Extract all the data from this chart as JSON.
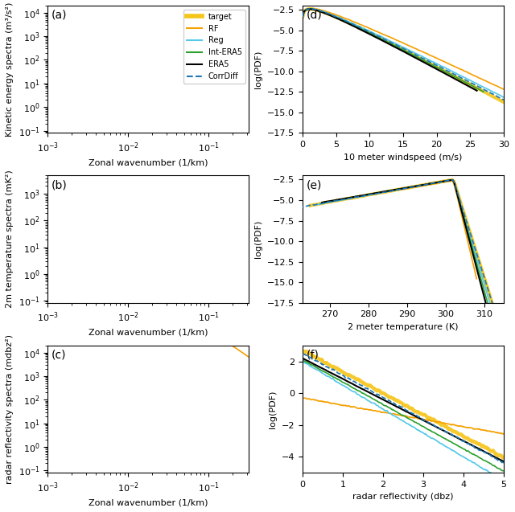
{
  "colors": {
    "target": "#f5c518",
    "RF": "#f5a000",
    "Reg": "#56c8e8",
    "Int-ERA5": "#2ca02c",
    "ERA5": "#000000",
    "CorrDiff": "#1f77b4"
  },
  "legend_labels": [
    "target",
    "RF",
    "Reg",
    "Int-ERA5",
    "ERA5",
    "CorrDiff"
  ],
  "panel_labels": [
    "(a)",
    "(b)",
    "(c)",
    "(d)",
    "(e)",
    "(f)"
  ],
  "ylabels_left": [
    "Kinetic energy spectra (m³/s²)",
    "2m temperature spectra (mK²)",
    "radar reflectivity spectra (mdbz²)"
  ],
  "ylabels_right": [
    "log(PDF)",
    "log(PDF)",
    "log(PDF)"
  ],
  "xlabels_left": [
    "Zonal wavenumber (1/km)",
    "Zonal wavenumber (1/km)",
    "Zonal wavenumber (1/km)"
  ],
  "xlabels_right": [
    "10 meter windspeed (m/s)",
    "2 meter temperature (K)",
    "radar reflectivity (dbz)"
  ],
  "figsize": [
    6.4,
    6.37
  ],
  "dpi": 100
}
